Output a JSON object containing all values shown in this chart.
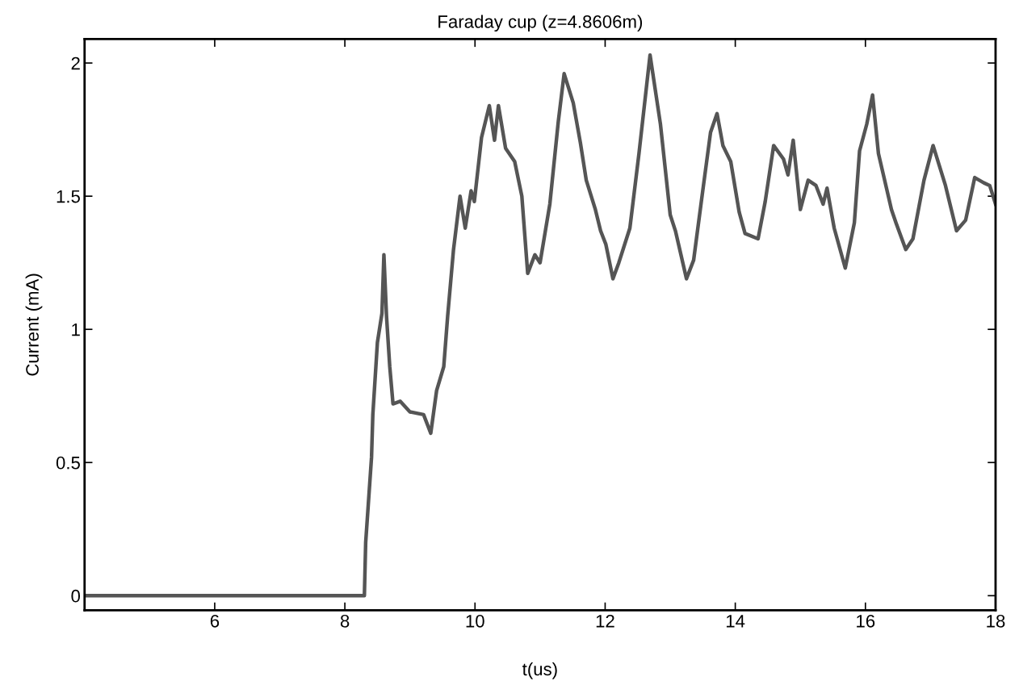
{
  "chart_data": {
    "type": "line",
    "title": "Faraday cup (z=4.8606m)",
    "xlabel": "t(us)",
    "ylabel": "Current (mA)",
    "xlim": [
      4,
      18
    ],
    "ylim": [
      -0.055,
      2.09
    ],
    "xticks": [
      6,
      8,
      10,
      12,
      14,
      16,
      18
    ],
    "yticks": [
      0,
      0.5,
      1,
      1.5,
      2
    ],
    "grid": false,
    "marker": "none",
    "line_style": "solid",
    "series": [
      {
        "color": "#555555",
        "x": [
          4.0,
          6.0,
          8.0,
          8.3,
          8.32,
          8.41,
          8.43,
          8.5,
          8.57,
          8.6,
          8.64,
          8.69,
          8.74,
          8.85,
          9.0,
          9.21,
          9.32,
          9.41,
          9.52,
          9.58,
          9.67,
          9.77,
          9.85,
          9.94,
          9.99,
          10.1,
          10.22,
          10.3,
          10.36,
          10.47,
          10.61,
          10.72,
          10.81,
          10.92,
          11.0,
          11.15,
          11.28,
          11.37,
          11.51,
          11.62,
          11.71,
          11.85,
          11.93,
          12.01,
          12.12,
          12.21,
          12.38,
          12.52,
          12.69,
          12.85,
          13.0,
          13.08,
          13.25,
          13.36,
          13.5,
          13.62,
          13.72,
          13.81,
          13.93,
          14.06,
          14.15,
          14.35,
          14.46,
          14.59,
          14.74,
          14.81,
          14.89,
          15.0,
          15.12,
          15.24,
          15.35,
          15.41,
          15.52,
          15.69,
          15.83,
          15.91,
          16.02,
          16.11,
          16.2,
          16.4,
          16.47,
          16.62,
          16.73,
          16.9,
          17.04,
          17.23,
          17.4,
          17.54,
          17.68,
          17.82,
          17.91,
          18.0
        ],
        "values": [
          0,
          0,
          0,
          0,
          0.2,
          0.52,
          0.68,
          0.95,
          1.06,
          1.28,
          1.05,
          0.86,
          0.72,
          0.73,
          0.69,
          0.68,
          0.61,
          0.77,
          0.86,
          1.05,
          1.3,
          1.5,
          1.38,
          1.52,
          1.48,
          1.72,
          1.84,
          1.71,
          1.84,
          1.68,
          1.63,
          1.5,
          1.21,
          1.28,
          1.25,
          1.47,
          1.78,
          1.96,
          1.85,
          1.7,
          1.56,
          1.45,
          1.37,
          1.32,
          1.19,
          1.25,
          1.38,
          1.66,
          2.03,
          1.77,
          1.43,
          1.37,
          1.19,
          1.26,
          1.52,
          1.74,
          1.81,
          1.69,
          1.63,
          1.44,
          1.36,
          1.34,
          1.48,
          1.69,
          1.64,
          1.58,
          1.71,
          1.45,
          1.56,
          1.54,
          1.47,
          1.53,
          1.38,
          1.23,
          1.4,
          1.67,
          1.77,
          1.88,
          1.66,
          1.45,
          1.4,
          1.3,
          1.34,
          1.56,
          1.69,
          1.54,
          1.37,
          1.41,
          1.57,
          1.55,
          1.54,
          1.47
        ]
      }
    ]
  }
}
